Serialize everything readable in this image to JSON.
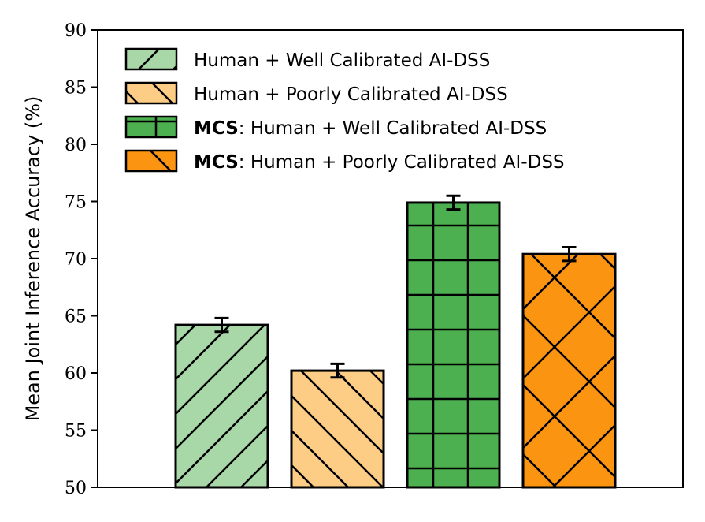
{
  "chart_data": {
    "type": "bar",
    "title": "",
    "xlabel": "",
    "ylabel": "Mean Joint Inference Accuracy (%)",
    "ylim": [
      50,
      90
    ],
    "yticks": [
      50,
      55,
      60,
      65,
      70,
      75,
      80,
      85,
      90
    ],
    "grid": false,
    "legend_position": "top-left",
    "series": [
      {
        "name": "Human + Well Calibrated AI-DSS",
        "prefix": "",
        "value": 64.2,
        "error": 0.6,
        "color": "#a8d8a8",
        "hatch": "diagonal-up"
      },
      {
        "name": "Human + Poorly Calibrated AI-DSS",
        "prefix": "",
        "value": 60.2,
        "error": 0.6,
        "color": "#fdcd85",
        "hatch": "diagonal-down"
      },
      {
        "name": ": Human + Well Calibrated AI-DSS",
        "prefix": "MCS",
        "value": 74.9,
        "error": 0.6,
        "color": "#4caf50",
        "hatch": "grid"
      },
      {
        "name": ": Human + Poorly Calibrated AI-DSS",
        "prefix": "MCS",
        "value": 70.4,
        "error": 0.6,
        "color": "#fb9410",
        "hatch": "crosshatch"
      }
    ]
  }
}
